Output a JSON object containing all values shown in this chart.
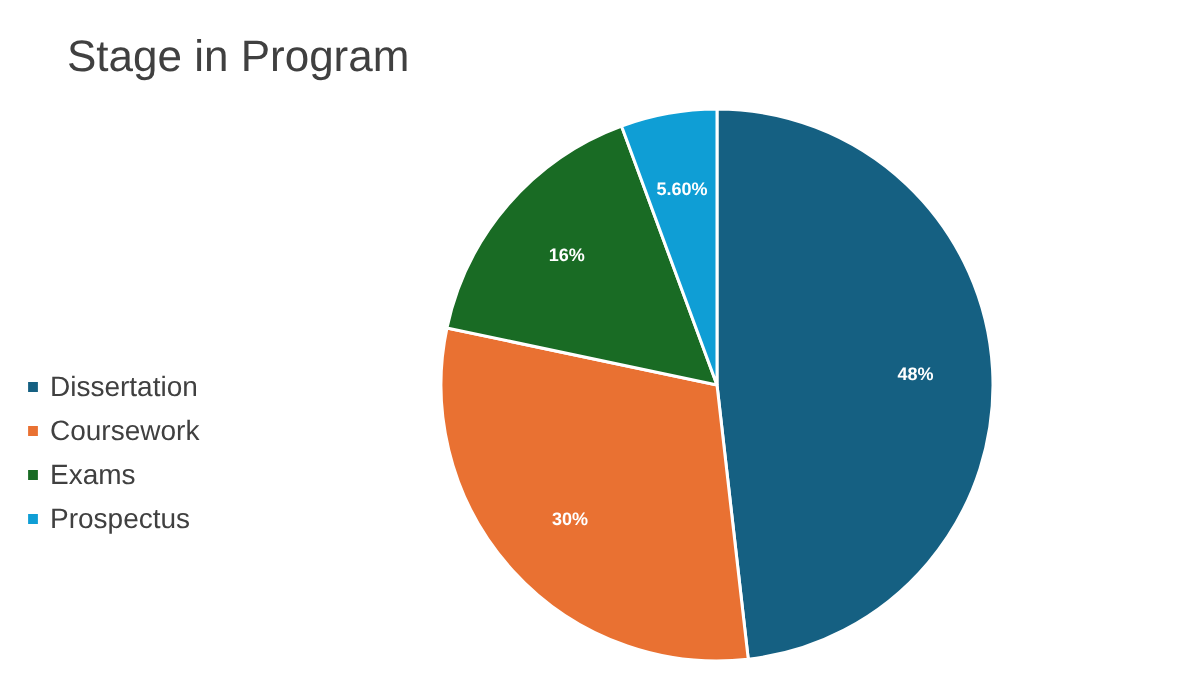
{
  "chart_data": {
    "type": "pie",
    "title": "Stage in Program",
    "categories": [
      "Dissertation",
      "Coursework",
      "Exams",
      "Prospectus"
    ],
    "values": [
      48,
      30,
      16,
      5.6
    ],
    "colors": [
      "#156082",
      "#e97132",
      "#196b24",
      "#0f9ed5"
    ],
    "value_labels": [
      "48%",
      "30%",
      "16%",
      "5.60%"
    ],
    "legend": "left"
  }
}
